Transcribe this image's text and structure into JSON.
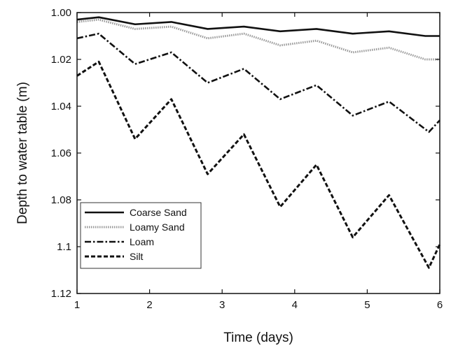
{
  "chart_data": {
    "type": "line",
    "title": "",
    "xlabel": "Time (days)",
    "ylabel": "Depth to water table (m)",
    "xlim": [
      1,
      6
    ],
    "ylim": [
      1.0,
      1.12
    ],
    "y_inverted": true,
    "grid": false,
    "legend_position": "left",
    "x_ticks": [
      1,
      2,
      3,
      4,
      5,
      6
    ],
    "x_tick_labels": [
      "1",
      "2",
      "3",
      "4",
      "5",
      "6"
    ],
    "y_ticks": [
      1.0,
      1.02,
      1.04,
      1.06,
      1.08,
      1.1,
      1.12
    ],
    "y_tick_labels": [
      "1.00",
      "1.02",
      "1.04",
      "1.06",
      "1.08",
      "1.1",
      "1.12"
    ],
    "series": [
      {
        "name": "Coarse Sand",
        "style": "solid",
        "color": "#111111",
        "points": [
          [
            1.0,
            1.003
          ],
          [
            1.3,
            1.002
          ],
          [
            1.8,
            1.005
          ],
          [
            2.3,
            1.004
          ],
          [
            2.8,
            1.007
          ],
          [
            3.3,
            1.006
          ],
          [
            3.8,
            1.008
          ],
          [
            4.3,
            1.007
          ],
          [
            4.8,
            1.009
          ],
          [
            5.3,
            1.008
          ],
          [
            5.8,
            1.01
          ],
          [
            6.0,
            1.01
          ]
        ]
      },
      {
        "name": "Loamy Sand",
        "style": "dotted",
        "color": "#999999",
        "points": [
          [
            1.0,
            1.004
          ],
          [
            1.3,
            1.003
          ],
          [
            1.8,
            1.007
          ],
          [
            2.3,
            1.006
          ],
          [
            2.8,
            1.011
          ],
          [
            3.3,
            1.009
          ],
          [
            3.8,
            1.014
          ],
          [
            4.3,
            1.012
          ],
          [
            4.8,
            1.017
          ],
          [
            5.3,
            1.015
          ],
          [
            5.8,
            1.02
          ],
          [
            6.0,
            1.02
          ]
        ]
      },
      {
        "name": "Loam",
        "style": "dashdot",
        "color": "#111111",
        "points": [
          [
            1.0,
            1.011
          ],
          [
            1.3,
            1.009
          ],
          [
            1.8,
            1.022
          ],
          [
            2.3,
            1.017
          ],
          [
            2.8,
            1.03
          ],
          [
            3.3,
            1.024
          ],
          [
            3.8,
            1.037
          ],
          [
            4.3,
            1.031
          ],
          [
            4.8,
            1.044
          ],
          [
            5.3,
            1.038
          ],
          [
            5.85,
            1.051
          ],
          [
            6.0,
            1.046
          ]
        ]
      },
      {
        "name": "Silt",
        "style": "dashed",
        "color": "#111111",
        "points": [
          [
            1.0,
            1.027
          ],
          [
            1.3,
            1.021
          ],
          [
            1.8,
            1.054
          ],
          [
            2.3,
            1.037
          ],
          [
            2.8,
            1.069
          ],
          [
            3.3,
            1.052
          ],
          [
            3.8,
            1.083
          ],
          [
            4.3,
            1.065
          ],
          [
            4.8,
            1.096
          ],
          [
            5.3,
            1.078
          ],
          [
            5.85,
            1.109
          ],
          [
            6.0,
            1.099
          ]
        ]
      }
    ]
  }
}
